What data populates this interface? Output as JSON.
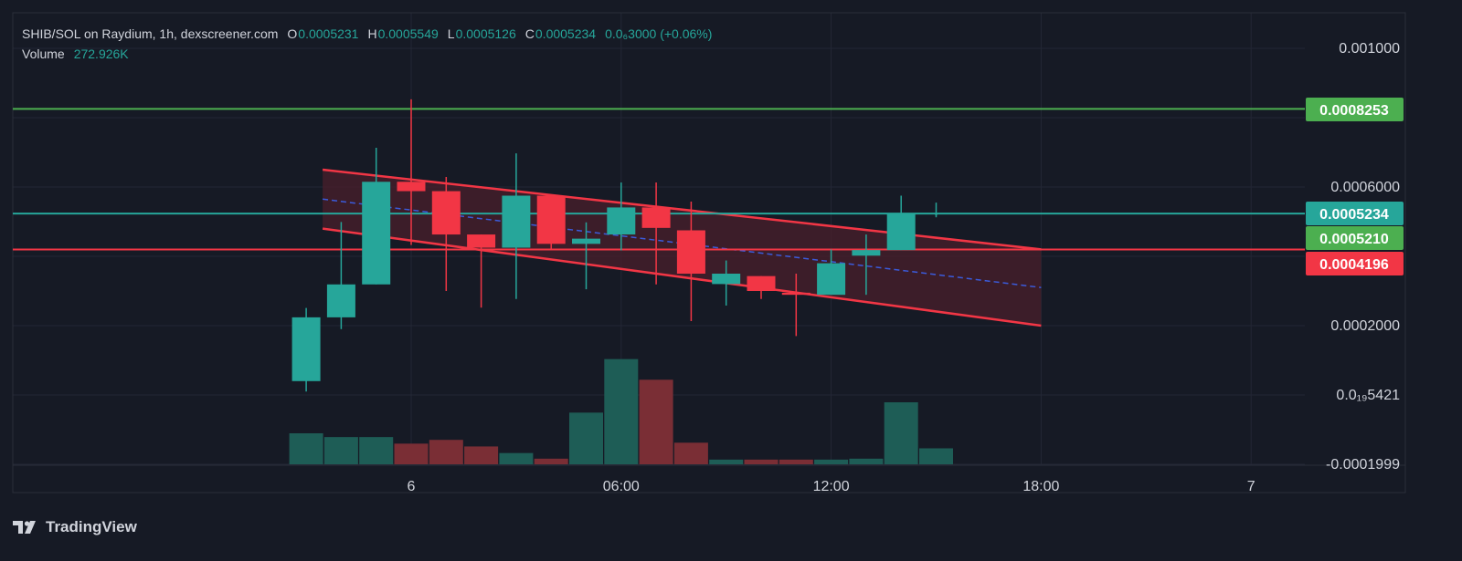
{
  "legend": {
    "title": "SHIB/SOL on Raydium, 1h, dexscreener.com",
    "open_key": "O",
    "open": "0.0005231",
    "high_key": "H",
    "high": "0.0005549",
    "low_key": "L",
    "low": "0.0005126",
    "close_key": "C",
    "close": "0.0005234",
    "change": "0.0₆3000 (+0.06%)",
    "volume_label": "Volume",
    "volume_value": "272.926K"
  },
  "brand": {
    "name": "TradingView",
    "icon": "tradingview-logo-icon"
  },
  "colors": {
    "up": "#26a69a",
    "down": "#f23645",
    "up_volume": "#1e5d56",
    "down_volume": "#7a2e35",
    "channel_line": "#f23645",
    "channel_fill": "#4a1f2b",
    "channel_mid": "#3b5bdb",
    "resistance": "#4caf50",
    "support": "#f23645",
    "grid": "#232735",
    "background": "#161a25"
  },
  "chart_data": {
    "type": "candlestick",
    "title": "SHIB/SOL on Raydium, 1h, dexscreener.com",
    "interval": "1h",
    "y_ticks": [
      "0.001000",
      "0.0006000",
      "0.0002000",
      "0.0₁₉5421",
      "-0.0001999"
    ],
    "y_tick_values": [
      0.001,
      0.0006,
      0.0002,
      0.0,
      -0.0001999
    ],
    "x_ticks": [
      "6",
      "06:00",
      "12:00",
      "18:00",
      "7"
    ],
    "x_tick_hours": [
      0,
      6,
      12,
      18,
      24
    ],
    "candles": [
      {
        "t": -3.0,
        "o": 4e-05,
        "h": 0.000251,
        "l": 1e-05,
        "c": 0.000224
      },
      {
        "t": -2.0,
        "o": 0.000224,
        "h": 0.000499,
        "l": 0.00019,
        "c": 0.000319
      },
      {
        "t": -1.0,
        "o": 0.000319,
        "h": 0.000713,
        "l": 0.000319,
        "c": 0.000615
      },
      {
        "t": 0.0,
        "o": 0.000615,
        "h": 0.000853,
        "l": 0.000433,
        "c": 0.000588
      },
      {
        "t": 1.0,
        "o": 0.000588,
        "h": 0.000629,
        "l": 0.0003,
        "c": 0.000463
      },
      {
        "t": 2.0,
        "o": 0.000463,
        "h": 0.000463,
        "l": 0.000252,
        "c": 0.000425
      },
      {
        "t": 3.0,
        "o": 0.000425,
        "h": 0.000697,
        "l": 0.000277,
        "c": 0.000575
      },
      {
        "t": 4.0,
        "o": 0.000575,
        "h": 0.000575,
        "l": 0.00042,
        "c": 0.000436
      },
      {
        "t": 5.0,
        "o": 0.000436,
        "h": 0.000498,
        "l": 0.000305,
        "c": 0.000451
      },
      {
        "t": 6.0,
        "o": 0.000463,
        "h": 0.000613,
        "l": 0.000417,
        "c": 0.000541
      },
      {
        "t": 7.0,
        "o": 0.000541,
        "h": 0.000613,
        "l": 0.000319,
        "c": 0.000482
      },
      {
        "t": 8.0,
        "o": 0.000475,
        "h": 0.000558,
        "l": 0.000213,
        "c": 0.00035
      },
      {
        "t": 9.0,
        "o": 0.00032,
        "h": 0.000388,
        "l": 0.000258,
        "c": 0.00035
      },
      {
        "t": 10.0,
        "o": 0.000343,
        "h": 0.000343,
        "l": 0.000277,
        "c": 0.0003
      },
      {
        "t": 11.0,
        "o": 0.000295,
        "h": 0.00035,
        "l": 0.00017,
        "c": 0.000289
      },
      {
        "t": 12.0,
        "o": 0.000289,
        "h": 0.00042,
        "l": 0.000289,
        "c": 0.00038
      },
      {
        "t": 13.0,
        "o": 0.000402,
        "h": 0.000463,
        "l": 0.000289,
        "c": 0.000418
      },
      {
        "t": 14.0,
        "o": 0.000418,
        "h": 0.000575,
        "l": 0.000418,
        "c": 0.000523
      },
      {
        "t": 15.0,
        "o": 0.0005231,
        "h": 0.0005549,
        "l": 0.0005126,
        "c": 0.0005234
      }
    ],
    "volume": {
      "label": "Volume",
      "unit_max": 12.0,
      "bars": [
        {
          "t": -3.0,
          "v": 3.3,
          "dir": "up"
        },
        {
          "t": -2.0,
          "v": 2.9,
          "dir": "up"
        },
        {
          "t": -1.0,
          "v": 2.9,
          "dir": "up"
        },
        {
          "t": 0.0,
          "v": 2.2,
          "dir": "down"
        },
        {
          "t": 1.0,
          "v": 2.6,
          "dir": "down"
        },
        {
          "t": 2.0,
          "v": 1.9,
          "dir": "down"
        },
        {
          "t": 3.0,
          "v": 1.2,
          "dir": "up"
        },
        {
          "t": 4.0,
          "v": 0.6,
          "dir": "down"
        },
        {
          "t": 5.0,
          "v": 5.5,
          "dir": "up"
        },
        {
          "t": 6.0,
          "v": 11.2,
          "dir": "up"
        },
        {
          "t": 7.0,
          "v": 9.0,
          "dir": "down"
        },
        {
          "t": 8.0,
          "v": 2.3,
          "dir": "down"
        },
        {
          "t": 9.0,
          "v": 0.5,
          "dir": "up"
        },
        {
          "t": 10.0,
          "v": 0.5,
          "dir": "down"
        },
        {
          "t": 11.0,
          "v": 0.5,
          "dir": "down"
        },
        {
          "t": 12.0,
          "v": 0.5,
          "dir": "up"
        },
        {
          "t": 13.0,
          "v": 0.6,
          "dir": "up"
        },
        {
          "t": 14.0,
          "v": 6.6,
          "dir": "up"
        },
        {
          "t": 15.0,
          "v": 1.7,
          "dir": "up"
        }
      ]
    },
    "horizontal_levels": [
      {
        "name": "resistance",
        "value": 0.0008253,
        "label": "0.0008253",
        "color_key": "resistance"
      },
      {
        "name": "current",
        "value": 0.0005234,
        "label": "0.0005234",
        "color_key": "up"
      },
      {
        "name": "level",
        "value": 0.000521,
        "label": "0.0005210",
        "color_key": "resistance",
        "no_line": true
      },
      {
        "name": "support",
        "value": 0.0004196,
        "label": "0.0004196",
        "color_key": "support"
      }
    ],
    "channel": {
      "type": "descending-channel",
      "t_start": -3.0,
      "t_end": 18.0,
      "upper": [
        0.00065,
        0.00042
      ],
      "lower": [
        0.00048,
        0.0002
      ],
      "mid": [
        0.000565,
        0.00031
      ]
    },
    "grid": true,
    "y_axis_position": "right"
  }
}
